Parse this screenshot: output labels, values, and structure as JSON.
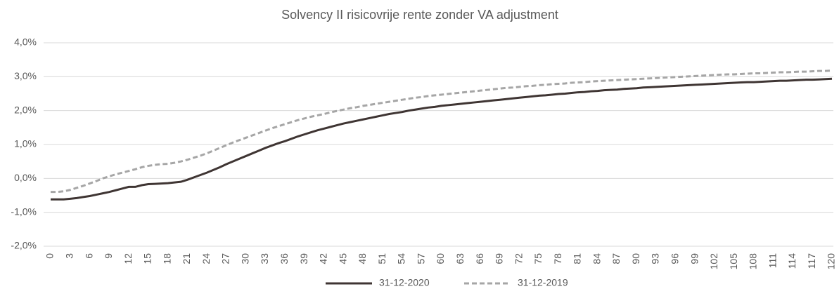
{
  "chart_data": {
    "type": "line",
    "title": "Solvency II risicovrije rente zonder VA adjustment",
    "x": [
      0,
      1,
      2,
      3,
      4,
      5,
      6,
      7,
      8,
      9,
      10,
      11,
      12,
      13,
      14,
      15,
      16,
      17,
      18,
      19,
      20,
      21,
      22,
      23,
      24,
      25,
      26,
      27,
      28,
      29,
      30,
      31,
      32,
      33,
      34,
      35,
      36,
      37,
      38,
      39,
      40,
      41,
      42,
      43,
      44,
      45,
      46,
      47,
      48,
      49,
      50,
      51,
      52,
      53,
      54,
      55,
      56,
      57,
      58,
      59,
      60,
      61,
      62,
      63,
      64,
      65,
      66,
      67,
      68,
      69,
      70,
      71,
      72,
      73,
      74,
      75,
      76,
      77,
      78,
      79,
      80,
      81,
      82,
      83,
      84,
      85,
      86,
      87,
      88,
      89,
      90,
      91,
      92,
      93,
      94,
      95,
      96,
      97,
      98,
      99,
      100,
      101,
      102,
      103,
      104,
      105,
      106,
      107,
      108,
      109,
      110,
      111,
      112,
      113,
      114,
      115,
      116,
      117,
      118,
      119,
      120
    ],
    "series": [
      {
        "name": "31-12-2020",
        "color": "#3f3533",
        "dash": false,
        "values": [
          -0.62,
          -0.62,
          -0.62,
          -0.6,
          -0.58,
          -0.55,
          -0.52,
          -0.48,
          -0.44,
          -0.4,
          -0.35,
          -0.3,
          -0.25,
          -0.25,
          -0.2,
          -0.17,
          -0.16,
          -0.15,
          -0.14,
          -0.12,
          -0.1,
          -0.04,
          0.03,
          0.1,
          0.17,
          0.25,
          0.33,
          0.42,
          0.5,
          0.58,
          0.66,
          0.74,
          0.82,
          0.9,
          0.97,
          1.04,
          1.1,
          1.17,
          1.24,
          1.3,
          1.36,
          1.42,
          1.47,
          1.52,
          1.57,
          1.62,
          1.66,
          1.7,
          1.74,
          1.78,
          1.82,
          1.86,
          1.9,
          1.93,
          1.96,
          2.0,
          2.03,
          2.06,
          2.09,
          2.11,
          2.14,
          2.16,
          2.18,
          2.2,
          2.22,
          2.24,
          2.26,
          2.28,
          2.3,
          2.32,
          2.34,
          2.36,
          2.38,
          2.4,
          2.42,
          2.44,
          2.45,
          2.47,
          2.49,
          2.5,
          2.52,
          2.54,
          2.55,
          2.57,
          2.58,
          2.6,
          2.61,
          2.62,
          2.64,
          2.65,
          2.66,
          2.68,
          2.69,
          2.7,
          2.71,
          2.72,
          2.73,
          2.74,
          2.75,
          2.76,
          2.77,
          2.78,
          2.79,
          2.8,
          2.81,
          2.82,
          2.83,
          2.84,
          2.84,
          2.85,
          2.86,
          2.87,
          2.88,
          2.88,
          2.89,
          2.9,
          2.91,
          2.91,
          2.92,
          2.93,
          2.94
        ]
      },
      {
        "name": "31-12-2019",
        "color": "#a6a6a6",
        "dash": true,
        "values": [
          -0.4,
          -0.4,
          -0.38,
          -0.34,
          -0.28,
          -0.22,
          -0.15,
          -0.08,
          0,
          0.06,
          0.12,
          0.17,
          0.22,
          0.27,
          0.33,
          0.37,
          0.4,
          0.42,
          0.43,
          0.46,
          0.5,
          0.55,
          0.61,
          0.67,
          0.74,
          0.82,
          0.9,
          0.98,
          1.06,
          1.13,
          1.2,
          1.27,
          1.34,
          1.41,
          1.48,
          1.54,
          1.6,
          1.66,
          1.72,
          1.77,
          1.82,
          1.86,
          1.9,
          1.95,
          1.99,
          2.03,
          2.07,
          2.1,
          2.14,
          2.17,
          2.2,
          2.23,
          2.26,
          2.29,
          2.32,
          2.35,
          2.38,
          2.4,
          2.43,
          2.45,
          2.47,
          2.49,
          2.51,
          2.53,
          2.55,
          2.57,
          2.59,
          2.61,
          2.63,
          2.65,
          2.67,
          2.68,
          2.7,
          2.72,
          2.73,
          2.75,
          2.76,
          2.78,
          2.79,
          2.8,
          2.82,
          2.83,
          2.84,
          2.86,
          2.87,
          2.88,
          2.89,
          2.9,
          2.91,
          2.92,
          2.93,
          2.94,
          2.95,
          2.96,
          2.97,
          2.98,
          2.99,
          3.0,
          3.01,
          3.02,
          3.03,
          3.04,
          3.05,
          3.06,
          3.07,
          3.07,
          3.08,
          3.09,
          3.1,
          3.1,
          3.11,
          3.12,
          3.13,
          3.13,
          3.14,
          3.15,
          3.15,
          3.16,
          3.17,
          3.17,
          3.18
        ]
      }
    ],
    "xlim": [
      0,
      120
    ],
    "xticks": [
      0,
      3,
      6,
      9,
      12,
      15,
      18,
      21,
      24,
      27,
      30,
      33,
      36,
      39,
      42,
      45,
      48,
      51,
      54,
      57,
      60,
      63,
      66,
      69,
      72,
      75,
      78,
      81,
      84,
      87,
      90,
      93,
      96,
      99,
      102,
      105,
      108,
      111,
      114,
      117,
      120
    ],
    "ylim": [
      -2,
      4
    ],
    "yticks": [
      {
        "value": -2,
        "label": "-2,0%"
      },
      {
        "value": -1,
        "label": "-1,0%"
      },
      {
        "value": 0,
        "label": "0,0%"
      },
      {
        "value": 1,
        "label": "1,0%"
      },
      {
        "value": 2,
        "label": "2,0%"
      },
      {
        "value": 3,
        "label": "3,0%"
      },
      {
        "value": 4,
        "label": "4,0%"
      }
    ],
    "grid": true,
    "legend": "bottom"
  }
}
